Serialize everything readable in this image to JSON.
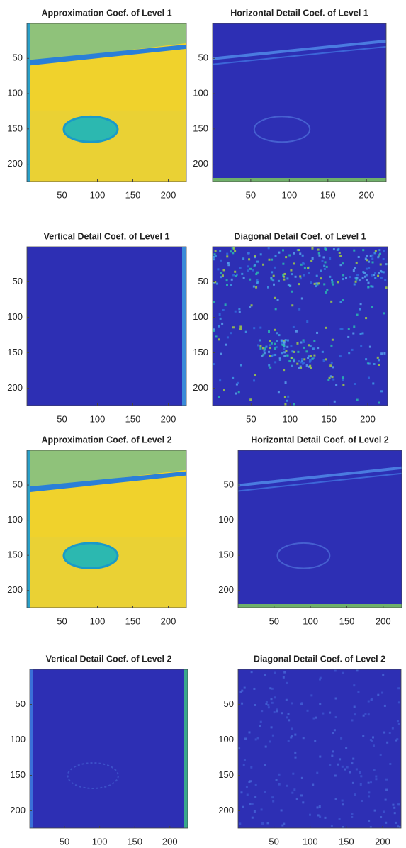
{
  "chart_data": [
    {
      "type": "image",
      "title": "Approximation Coef. of Level 1",
      "xlim": [
        0.5,
        225.5
      ],
      "ylim": [
        224.5,
        0.5
      ],
      "xticks": [
        50,
        100,
        150,
        200
      ],
      "yticks": [
        50,
        100,
        150,
        200
      ]
    },
    {
      "type": "image",
      "title": "Horizontal Detail Coef. of Level 1",
      "xlim": [
        0.5,
        225.5
      ],
      "ylim": [
        224.5,
        0.5
      ],
      "xticks": [
        50,
        100,
        150,
        200
      ],
      "yticks": [
        50,
        100,
        150,
        200
      ]
    },
    {
      "type": "image",
      "title": "Vertical Detail Coef. of Level 1",
      "xlim": [
        0.5,
        225.5
      ],
      "ylim": [
        224.5,
        0.5
      ],
      "xticks": [
        50,
        100,
        150,
        200
      ],
      "yticks": [
        50,
        100,
        150,
        200
      ]
    },
    {
      "type": "image",
      "title": "Diagonal Detail Coef. of Level 1",
      "xlim": [
        0.5,
        225.5
      ],
      "ylim": [
        224.5,
        0.5
      ],
      "xticks": [
        50,
        100,
        150,
        200
      ],
      "yticks": [
        50,
        100,
        150,
        200
      ]
    },
    {
      "type": "image",
      "title": "Approximation Coef. of Level 2",
      "xlim": [
        0.5,
        225.5
      ],
      "ylim": [
        224.5,
        0.5
      ],
      "xticks": [
        50,
        100,
        150,
        200
      ],
      "yticks": [
        50,
        100,
        150,
        200
      ]
    },
    {
      "type": "image",
      "title": "Horizontal Detail Coef. of Level 2",
      "xlim": [
        0.5,
        225.5
      ],
      "ylim": [
        224.5,
        0.5
      ],
      "xticks": [
        50,
        100,
        150,
        200
      ],
      "yticks": [
        50,
        100,
        150,
        200
      ]
    },
    {
      "type": "image",
      "title": "Vertical Detail Coef. of Level 2",
      "xlim": [
        0.5,
        225.5
      ],
      "ylim": [
        224.5,
        0.5
      ],
      "xticks": [
        50,
        100,
        150,
        200
      ],
      "yticks": [
        50,
        100,
        150,
        200
      ]
    },
    {
      "type": "image",
      "title": "Diagonal Detail Coef. of Level 2",
      "xlim": [
        0.5,
        225.5
      ],
      "ylim": [
        224.5,
        0.5
      ],
      "xticks": [
        50,
        100,
        150,
        200
      ],
      "yticks": [
        50,
        100,
        150,
        200
      ]
    }
  ]
}
